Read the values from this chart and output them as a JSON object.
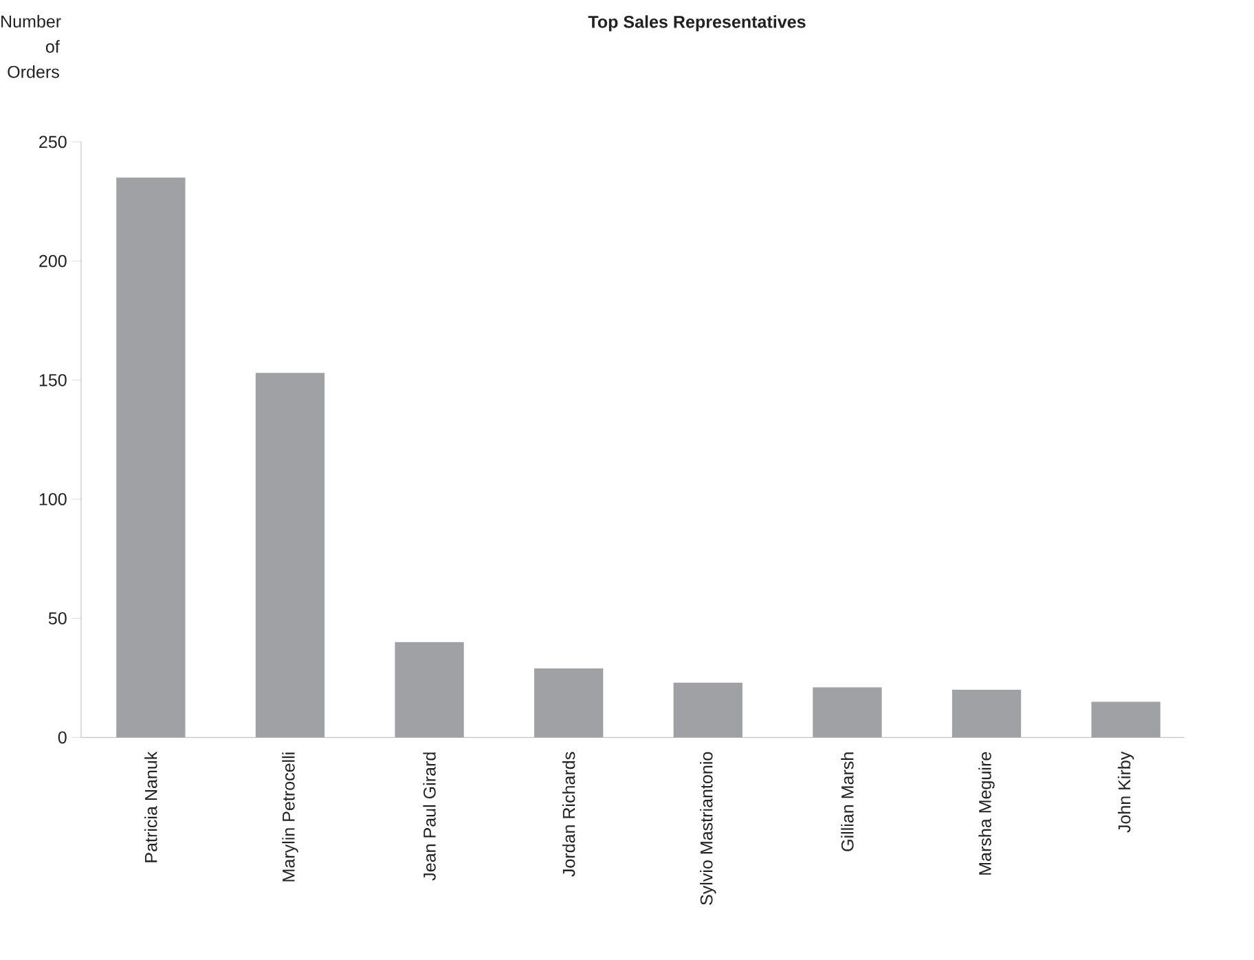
{
  "chart_data": {
    "type": "bar",
    "title": "Top Sales Representatives",
    "ylabel": "Number of Orders",
    "categories": [
      "Patricia Nanuk",
      "Marylin Petrocelli",
      "Jean Paul Girard",
      "Jordan Richards",
      "Sylvio Mastriantonio",
      "Gillian Marsh",
      "Marsha Meguire",
      "John Kirby"
    ],
    "values": [
      235,
      153,
      40,
      29,
      23,
      21,
      20,
      15
    ],
    "color": "#a0a1a5",
    "ylim": [
      0,
      250
    ],
    "yticks": [
      0,
      50,
      100,
      150,
      200,
      250
    ],
    "grid": false
  }
}
